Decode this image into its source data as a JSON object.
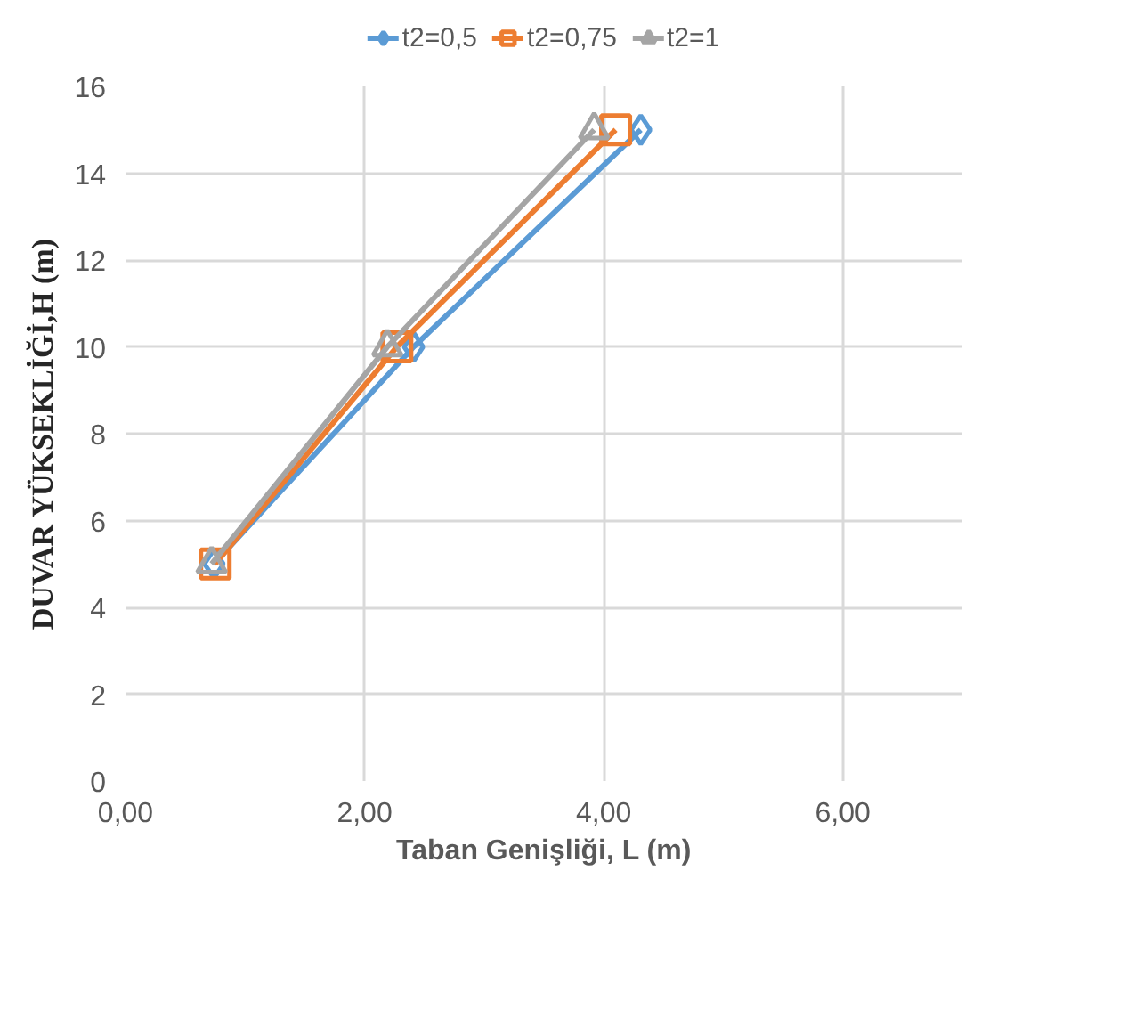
{
  "chart_data": {
    "type": "line",
    "xlabel": "Taban Genişliği, L (m)",
    "ylabel": "DUVAR YÜKSEKLİĞİ,H (m)",
    "xlim": [
      0,
      7
    ],
    "ylim": [
      0,
      16
    ],
    "xticks": [
      {
        "value": 0,
        "label": "0,00"
      },
      {
        "value": 2,
        "label": "2,00"
      },
      {
        "value": 4,
        "label": "4,00"
      },
      {
        "value": 6,
        "label": "6,00"
      }
    ],
    "yticks": [
      0,
      2,
      4,
      6,
      8,
      10,
      12,
      14,
      16
    ],
    "grid": true,
    "legend": "top",
    "line_style": "solid",
    "series": [
      {
        "name": "t2=0,5",
        "color": "#5b9bd5",
        "marker": "diamond",
        "x": [
          0.74,
          2.41,
          4.31
        ],
        "values": [
          5,
          10,
          15
        ]
      },
      {
        "name": "t2=0,75",
        "color": "#ed7d31",
        "marker": "square",
        "x": [
          0.75,
          2.27,
          4.1
        ],
        "values": [
          5,
          10,
          15
        ]
      },
      {
        "name": "t2=1",
        "color": "#a5a5a5",
        "marker": "triangle",
        "x": [
          0.72,
          2.19,
          3.92
        ],
        "values": [
          5,
          10,
          15
        ]
      }
    ]
  }
}
